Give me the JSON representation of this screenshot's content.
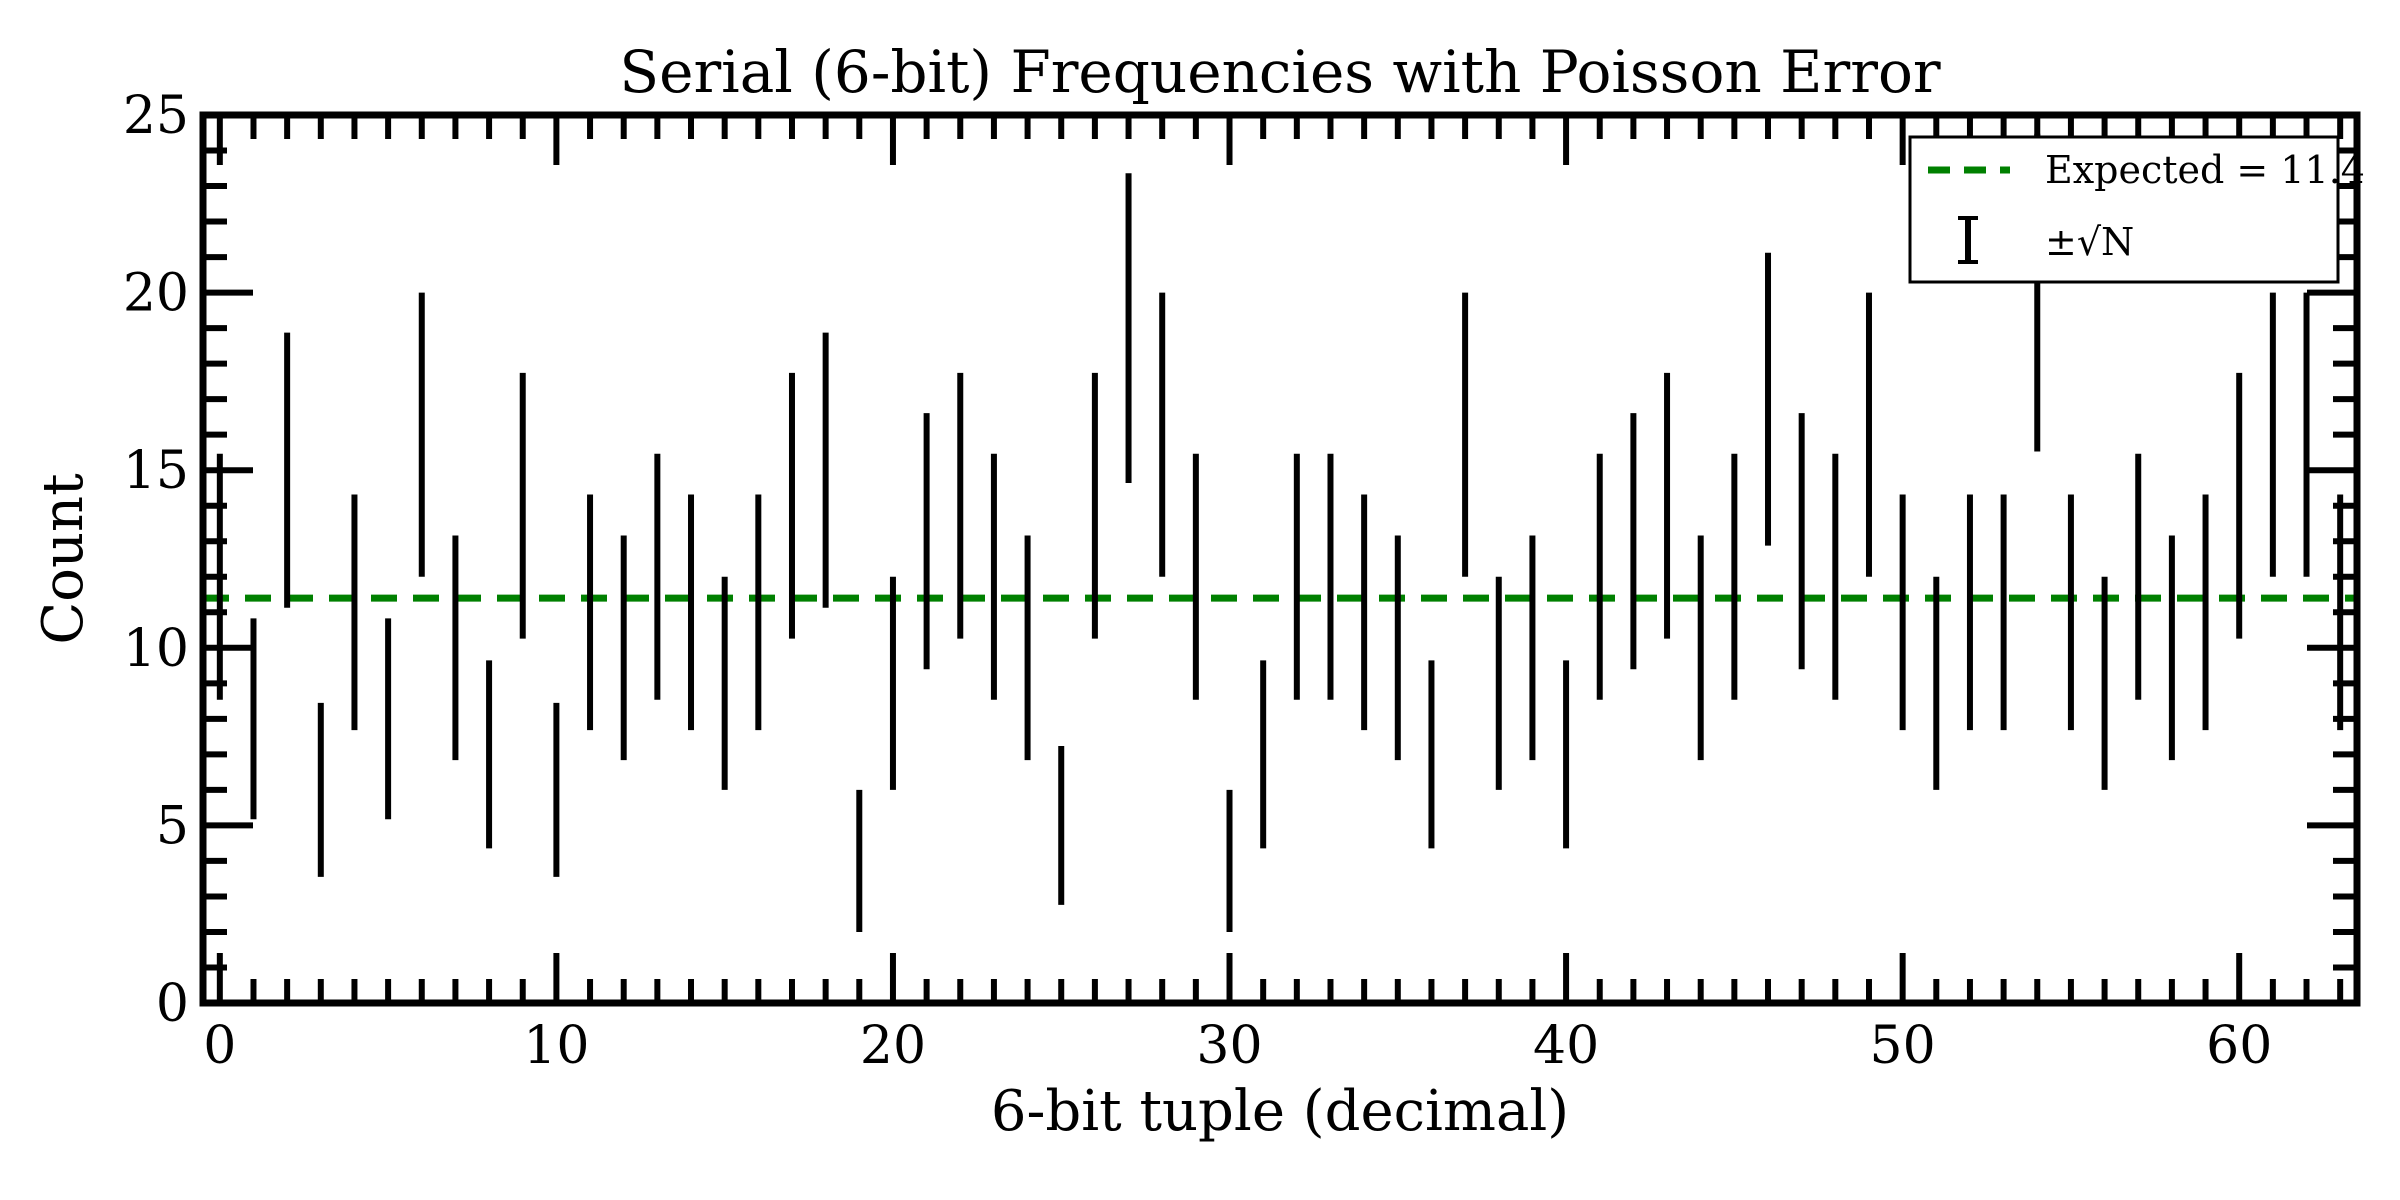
{
  "chart_data": {
    "type": "errorbar",
    "title": "Serial (6-bit) Frequencies with Poisson Error",
    "xlabel": "6-bit tuple (decimal)",
    "ylabel": "Count",
    "xlim": [
      -0.5,
      63.5
    ],
    "ylim": [
      0,
      25
    ],
    "xticks": [
      0,
      10,
      20,
      30,
      40,
      50,
      60
    ],
    "yticks": [
      0,
      5,
      10,
      15,
      20,
      25
    ],
    "legend_position": "top-right",
    "expected": {
      "label": "Expected = 11.4",
      "value": 11.4,
      "color": "#008000"
    },
    "errorbars": {
      "label": "±√N",
      "color": "#000000"
    },
    "x": [
      0,
      1,
      2,
      3,
      4,
      5,
      6,
      7,
      8,
      9,
      10,
      11,
      12,
      13,
      14,
      15,
      16,
      17,
      18,
      19,
      20,
      21,
      22,
      23,
      24,
      25,
      26,
      27,
      28,
      29,
      30,
      31,
      32,
      33,
      34,
      35,
      36,
      37,
      38,
      39,
      40,
      41,
      42,
      43,
      44,
      45,
      46,
      47,
      48,
      49,
      50,
      51,
      52,
      53,
      54,
      55,
      56,
      57,
      58,
      59,
      60,
      61,
      62,
      63
    ],
    "values": [
      12,
      8,
      15,
      6,
      11,
      8,
      16,
      10,
      7,
      14,
      6,
      11,
      10,
      12,
      11,
      9,
      11,
      14,
      15,
      4,
      9,
      13,
      14,
      12,
      10,
      5,
      14,
      19,
      16,
      12,
      4,
      7,
      12,
      12,
      11,
      10,
      7,
      16,
      9,
      10,
      7,
      12,
      13,
      14,
      10,
      12,
      17,
      13,
      12,
      16,
      11,
      9,
      11,
      11,
      20,
      11,
      9,
      12,
      10,
      11,
      14,
      16,
      16,
      11
    ]
  }
}
